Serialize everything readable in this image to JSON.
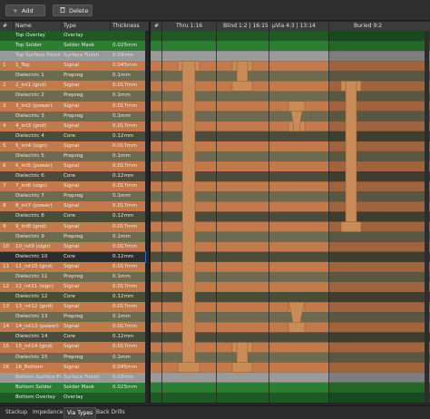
{
  "toolbar": {
    "add_label": "Add",
    "delete_label": "Delete",
    "add_icon": "+",
    "delete_icon": "trash-icon"
  },
  "columns": {
    "num": "#",
    "name": "Name",
    "type": "Type",
    "thickness": "Thickness"
  },
  "via_columns": [
    {
      "label": "#"
    },
    {
      "label": "Thru 1:16"
    },
    {
      "label": "Blind 1:2 | 16:15"
    },
    {
      "label": "µVia 4:3 | 13:14"
    },
    {
      "label": "Buried 9:2"
    }
  ],
  "rows": [
    {
      "num": "",
      "name": "Top Overlay",
      "type": "Overlay",
      "thickness": "",
      "kind": "overlay"
    },
    {
      "num": "",
      "name": "Top Solder",
      "type": "Solder Mask",
      "thickness": "0.025mm",
      "kind": "mask"
    },
    {
      "num": "",
      "name": "Top Surface Finish",
      "type": "Surface Finish",
      "thickness": "0.03mm",
      "kind": "finish"
    },
    {
      "num": "1",
      "name": "1_Top",
      "type": "Signal",
      "thickness": "0.045mm",
      "kind": "copper"
    },
    {
      "num": "",
      "name": "Dielectric 1",
      "type": "Prepreg",
      "thickness": "0.1mm",
      "kind": "prepreg"
    },
    {
      "num": "2",
      "name": "2_int1 (gnd)",
      "type": "Signal",
      "thickness": "0.017mm",
      "kind": "copper"
    },
    {
      "num": "",
      "name": "Dielectric 2",
      "type": "Prepreg",
      "thickness": "0.1mm",
      "kind": "prepreg"
    },
    {
      "num": "3",
      "name": "3_int2 (power)",
      "type": "Signal",
      "thickness": "0.017mm",
      "kind": "copper"
    },
    {
      "num": "",
      "name": "Dielectric 3",
      "type": "Prepreg",
      "thickness": "0.1mm",
      "kind": "prepreg"
    },
    {
      "num": "4",
      "name": "4_int3 (gnd)",
      "type": "Signal",
      "thickness": "0.017mm",
      "kind": "copper"
    },
    {
      "num": "",
      "name": "Dielectric 4",
      "type": "Core",
      "thickness": "0.12mm",
      "kind": "core"
    },
    {
      "num": "5",
      "name": "5_int4 (sign)",
      "type": "Signal",
      "thickness": "0.017mm",
      "kind": "copper"
    },
    {
      "num": "",
      "name": "Dielectric 5",
      "type": "Prepreg",
      "thickness": "0.1mm",
      "kind": "prepreg"
    },
    {
      "num": "6",
      "name": "6_int5 (power)",
      "type": "Signal",
      "thickness": "0.017mm",
      "kind": "copper"
    },
    {
      "num": "",
      "name": "Dielectric 6",
      "type": "Core",
      "thickness": "0.12mm",
      "kind": "core"
    },
    {
      "num": "7",
      "name": "7_int6 (sign)",
      "type": "Signal",
      "thickness": "0.017mm",
      "kind": "copper"
    },
    {
      "num": "",
      "name": "Dielectric 7",
      "type": "Prepreg",
      "thickness": "0.1mm",
      "kind": "prepreg"
    },
    {
      "num": "8",
      "name": "8_int7 (power)",
      "type": "Signal",
      "thickness": "0.017mm",
      "kind": "copper"
    },
    {
      "num": "",
      "name": "Dielectric 8",
      "type": "Core",
      "thickness": "0.12mm",
      "kind": "core"
    },
    {
      "num": "9",
      "name": "9_int8 (gnd)",
      "type": "Signal",
      "thickness": "0.017mm",
      "kind": "copper"
    },
    {
      "num": "",
      "name": "Dielectric 9",
      "type": "Prepreg",
      "thickness": "0.1mm",
      "kind": "prepreg"
    },
    {
      "num": "10",
      "name": "10_int9 (sign)",
      "type": "Signal",
      "thickness": "0.017mm",
      "kind": "copper"
    },
    {
      "num": "",
      "name": "Dielectric 10",
      "type": "Core",
      "thickness": "0.12mm",
      "kind": "core",
      "selected": true
    },
    {
      "num": "11",
      "name": "11_int10 (gnd)",
      "type": "Signal",
      "thickness": "0.017mm",
      "kind": "copper"
    },
    {
      "num": "",
      "name": "Dielectric 11",
      "type": "Prepreg",
      "thickness": "0.1mm",
      "kind": "prepreg"
    },
    {
      "num": "12",
      "name": "12_int11 (sign)",
      "type": "Signal",
      "thickness": "0.017mm",
      "kind": "copper"
    },
    {
      "num": "",
      "name": "Dielectric 12",
      "type": "Core",
      "thickness": "0.12mm",
      "kind": "core"
    },
    {
      "num": "13",
      "name": "13_int12 (gnd)",
      "type": "Signal",
      "thickness": "0.017mm",
      "kind": "copper"
    },
    {
      "num": "",
      "name": "Dielectric 13",
      "type": "Prepreg",
      "thickness": "0.1mm",
      "kind": "prepreg"
    },
    {
      "num": "14",
      "name": "14_int13 (power)",
      "type": "Signal",
      "thickness": "0.017mm",
      "kind": "copper"
    },
    {
      "num": "",
      "name": "Dielectric 14",
      "type": "Core",
      "thickness": "0.12mm",
      "kind": "core"
    },
    {
      "num": "15",
      "name": "15_int14 (gnd)",
      "type": "Signal",
      "thickness": "0.017mm",
      "kind": "copper"
    },
    {
      "num": "",
      "name": "Dielectric 15",
      "type": "Prepreg",
      "thickness": "0.1mm",
      "kind": "prepreg"
    },
    {
      "num": "16",
      "name": "16_Bottom",
      "type": "Signal",
      "thickness": "0.045mm",
      "kind": "copper"
    },
    {
      "num": "",
      "name": "Bottom Surface Finish",
      "type": "Surface Finish",
      "thickness": "0.03mm",
      "kind": "finish"
    },
    {
      "num": "",
      "name": "Bottom Solder",
      "type": "Solder Mask",
      "thickness": "0.025mm",
      "kind": "mask"
    },
    {
      "num": "",
      "name": "Bottom Overlay",
      "type": "Overlay",
      "thickness": "",
      "kind": "overlay"
    }
  ],
  "colors": {
    "overlay": "#1f5a25",
    "mask": "#2c7e33",
    "finish": "#9a9a9a",
    "copper": "#c27a4c",
    "prepreg": "#6d6a50",
    "core": "#4d4b3a",
    "via_fill": "#c98b57",
    "via_edge": "#8a5a30"
  },
  "tabs": [
    {
      "label": "Stackup",
      "active": false
    },
    {
      "label": "Impedance",
      "active": false
    },
    {
      "label": "Via Types",
      "active": true
    },
    {
      "label": "Back Drills",
      "active": false
    }
  ]
}
